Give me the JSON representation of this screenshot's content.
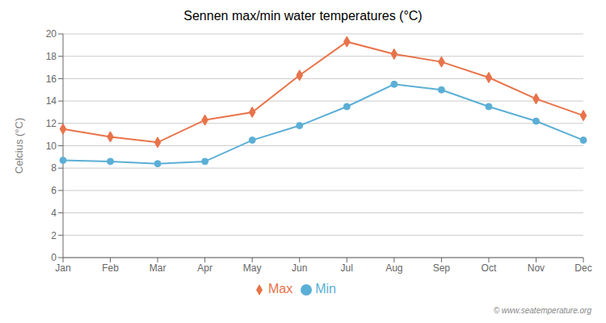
{
  "chart_data": {
    "type": "line",
    "title": "Sennen max/min water temperatures (°C)",
    "y_label": "Celcius (°C)",
    "categories": [
      "Jan",
      "Feb",
      "Mar",
      "Apr",
      "May",
      "Jun",
      "Jul",
      "Aug",
      "Sep",
      "Oct",
      "Nov",
      "Dec"
    ],
    "series": [
      {
        "name": "Max",
        "color": "#e8734a",
        "marker": "diamond",
        "values": [
          11.5,
          10.8,
          10.3,
          12.3,
          13.0,
          16.3,
          19.3,
          18.2,
          17.5,
          16.1,
          14.2,
          12.7
        ]
      },
      {
        "name": "Min",
        "color": "#5bafd6",
        "marker": "circle",
        "values": [
          8.7,
          8.6,
          8.4,
          8.6,
          10.5,
          11.8,
          13.5,
          15.5,
          15.0,
          13.5,
          12.2,
          10.5
        ]
      }
    ],
    "ylim": [
      0,
      20
    ],
    "yticks": [
      0,
      2,
      4,
      6,
      8,
      10,
      12,
      14,
      16,
      18,
      20
    ],
    "grid": true,
    "legend": "bottom",
    "annotations": [
      "© www.seatemperature.org"
    ]
  }
}
